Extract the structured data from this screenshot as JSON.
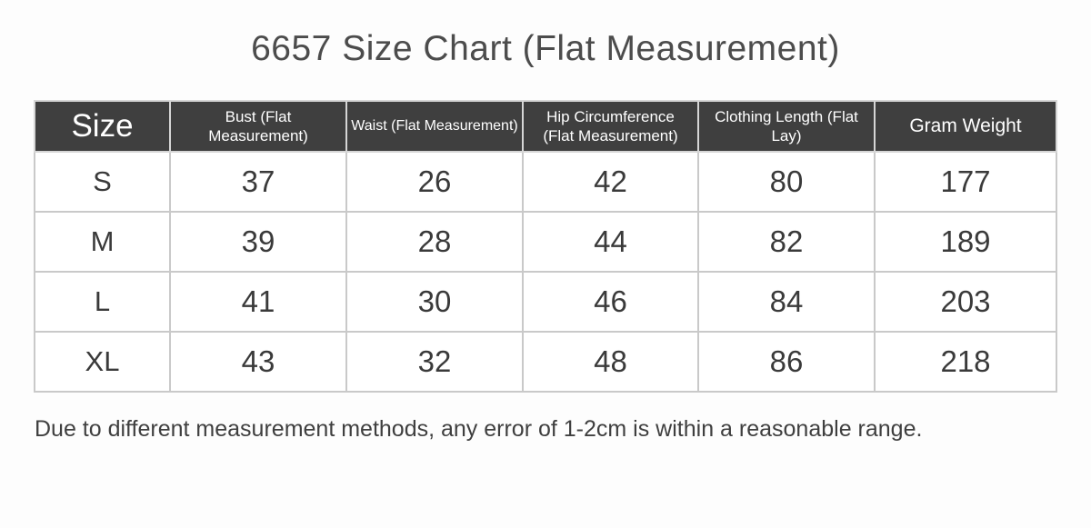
{
  "page": {
    "title": "6657 Size Chart (Flat Measurement)",
    "note": "Due to different measurement methods, any error of 1-2cm is within a reasonable range."
  },
  "colors": {
    "header_background": "#3f3f3f",
    "header_text": "#ffffff",
    "body_text": "#3a3a3a",
    "table_border": "#c9c9c9",
    "page_background": "#fdfdfd"
  },
  "chart_data": {
    "type": "table",
    "title": "6657 Size Chart (Flat Measurement)",
    "columns": [
      "Size",
      "Bust (Flat Measurement)",
      "Waist (Flat Measurement)",
      "Hip Circumference (Flat Measurement)",
      "Clothing Length (Flat Lay)",
      "Gram Weight"
    ],
    "rows": [
      [
        "S",
        37,
        26,
        42,
        80,
        177
      ],
      [
        "M",
        39,
        28,
        44,
        82,
        189
      ],
      [
        "L",
        41,
        30,
        46,
        84,
        203
      ],
      [
        "XL",
        43,
        32,
        48,
        86,
        218
      ]
    ],
    "note": "Due to different measurement methods, any error of 1-2cm is within a reasonable range."
  }
}
